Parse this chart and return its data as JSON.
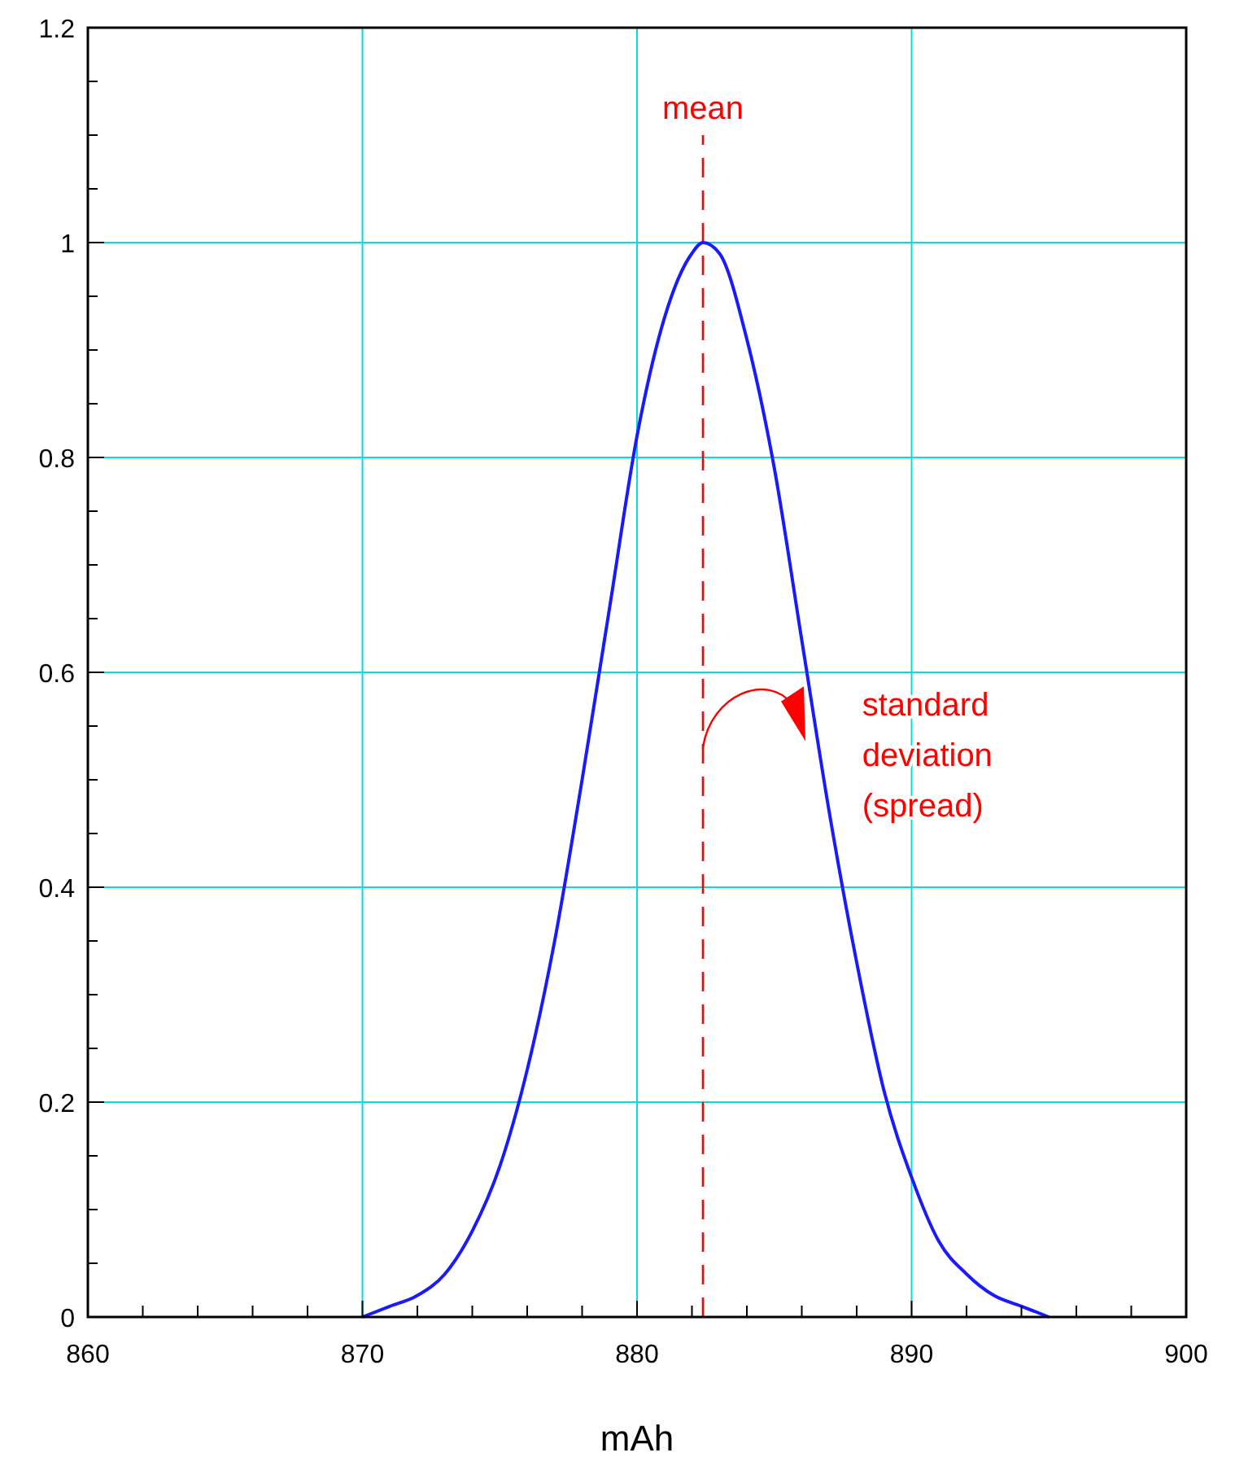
{
  "chart_data": {
    "type": "line",
    "xlabel": "mAh",
    "x": [
      870,
      871,
      872,
      873,
      874,
      875,
      876,
      877,
      878,
      879,
      880,
      881,
      882,
      882.4,
      883,
      884,
      885,
      886,
      887,
      888,
      889,
      890,
      891,
      892,
      893,
      894,
      895
    ],
    "series": [
      {
        "color": "#1a1aff",
        "values": [
          0,
          0.01,
          0.02,
          0.04,
          0.08,
          0.14,
          0.23,
          0.35,
          0.5,
          0.66,
          0.82,
          0.93,
          0.99,
          1,
          0.99,
          0.91,
          0.79,
          0.63,
          0.47,
          0.33,
          0.21,
          0.13,
          0.07,
          0.04,
          0.02,
          0.01,
          0
        ]
      }
    ],
    "xlim": [
      860,
      900
    ],
    "xticks": [
      860,
      {
        "value": 862,
        "label": null
      },
      {
        "value": 864,
        "label": null
      },
      {
        "value": 866,
        "label": null
      },
      {
        "value": 868,
        "label": null
      },
      870,
      {
        "value": 872,
        "label": null
      },
      {
        "value": 874,
        "label": null
      },
      {
        "value": 876,
        "label": null
      },
      {
        "value": 878,
        "label": null
      },
      880,
      {
        "value": 882,
        "label": null
      },
      {
        "value": 884,
        "label": null
      },
      {
        "value": 886,
        "label": null
      },
      {
        "value": 888,
        "label": null
      },
      890,
      {
        "value": 892,
        "label": null
      },
      {
        "value": 894,
        "label": null
      },
      {
        "value": 896,
        "label": null
      },
      {
        "value": 898,
        "label": null
      },
      900
    ],
    "ylim": [
      0,
      1.2
    ],
    "yticks": [
      0,
      {
        "value": 0.05,
        "label": null
      },
      {
        "value": 0.1,
        "label": null
      },
      {
        "value": 0.15,
        "label": null
      },
      0.2,
      {
        "value": 0.25,
        "label": null
      },
      {
        "value": 0.3,
        "label": null
      },
      {
        "value": 0.35,
        "label": null
      },
      0.4,
      {
        "value": 0.45,
        "label": null
      },
      {
        "value": 0.5,
        "label": null
      },
      {
        "value": 0.55,
        "label": null
      },
      0.6,
      {
        "value": 0.65,
        "label": null
      },
      {
        "value": 0.7,
        "label": null
      },
      {
        "value": 0.75,
        "label": null
      },
      0.8,
      {
        "value": 0.85,
        "label": null
      },
      {
        "value": 0.9,
        "label": null
      },
      {
        "value": 0.95,
        "label": null
      },
      1,
      {
        "value": 1.05,
        "label": null
      },
      {
        "value": 1.1,
        "label": null
      },
      {
        "value": 1.15,
        "label": null
      },
      1.2
    ],
    "grid": true,
    "line_style": "solid",
    "ref_lines": [
      {
        "axis": "x",
        "value": 882.4,
        "label": "mean",
        "color": "#ff0000",
        "line_style": "dashed"
      }
    ],
    "annotations": [
      "standard deviation (spread)"
    ]
  }
}
